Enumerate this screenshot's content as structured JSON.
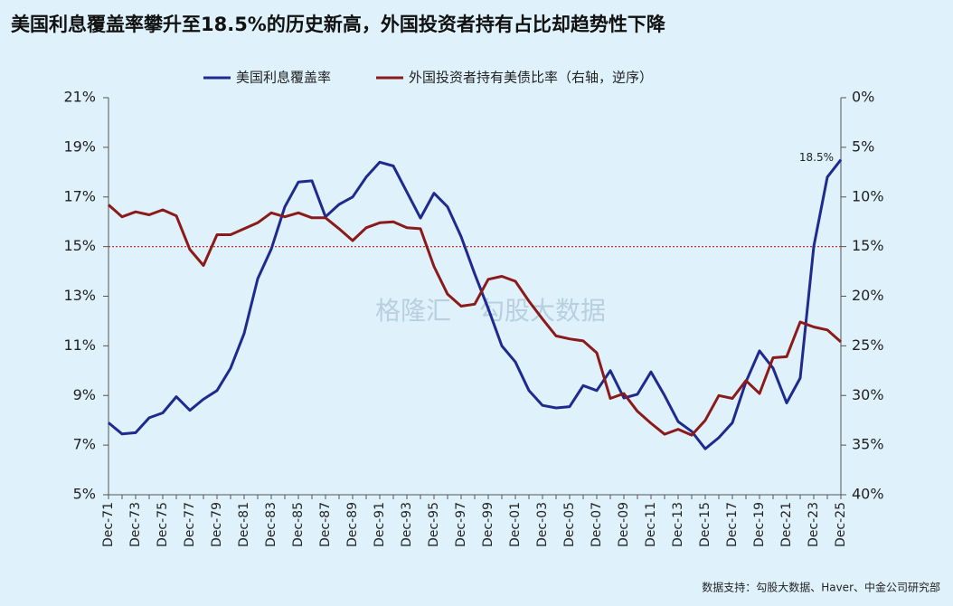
{
  "chart_data": {
    "type": "line",
    "title": "美国利息覆盖率攀升至18.5%的历史新高，外国投资者持有占比却趋势性下降",
    "categories": [
      "Dec-71",
      null,
      "Dec-73",
      null,
      "Dec-75",
      null,
      "Dec-77",
      null,
      "Dec-79",
      null,
      "Dec-81",
      null,
      "Dec-83",
      null,
      "Dec-85",
      null,
      "Dec-87",
      null,
      "Dec-89",
      null,
      "Dec-91",
      null,
      "Dec-93",
      null,
      "Dec-95",
      null,
      "Dec-97",
      null,
      "Dec-99",
      null,
      "Dec-01",
      null,
      "Dec-03",
      null,
      "Dec-05",
      null,
      "Dec-07",
      null,
      "Dec-09",
      null,
      "Dec-11",
      null,
      "Dec-13",
      null,
      "Dec-15",
      null,
      "Dec-17",
      null,
      "Dec-19",
      null,
      "Dec-21",
      null,
      "Dec-23",
      null,
      "Dec-25"
    ],
    "series": [
      {
        "name": "美国利息覆盖率",
        "color": "#1f2a8f",
        "axis": "y",
        "values": [
          7.9,
          7.45,
          7.5,
          8.1,
          8.3,
          8.95,
          8.4,
          8.85,
          9.2,
          10.1,
          11.5,
          13.7,
          14.9,
          16.6,
          17.6,
          17.65,
          16.2,
          16.7,
          17.0,
          17.8,
          18.4,
          18.25,
          17.2,
          16.15,
          17.15,
          16.6,
          15.4,
          13.9,
          12.5,
          11.0,
          10.35,
          9.2,
          8.6,
          8.5,
          8.55,
          9.4,
          9.2,
          10.0,
          8.9,
          9.05,
          9.95,
          9.0,
          7.95,
          7.55,
          6.85,
          7.3,
          7.9,
          9.55,
          10.8,
          10.1,
          8.7,
          9.7,
          15.0,
          17.8,
          18.5
        ]
      },
      {
        "name": "外国投资者持有美债比率（右轴，逆序）",
        "color": "#8b1a1a",
        "axis": "y2",
        "values": [
          10.8,
          12.0,
          11.5,
          11.8,
          11.3,
          11.9,
          15.3,
          16.9,
          13.8,
          13.8,
          13.2,
          12.6,
          11.6,
          12.0,
          11.6,
          12.1,
          12.1,
          13.2,
          14.4,
          13.1,
          12.6,
          12.5,
          13.1,
          13.2,
          17.0,
          19.8,
          21.0,
          20.8,
          18.3,
          18.0,
          18.5,
          20.5,
          22.3,
          24.0,
          24.3,
          24.5,
          25.7,
          30.3,
          29.8,
          31.6,
          32.8,
          33.9,
          33.4,
          34.0,
          32.5,
          30.0,
          30.3,
          28.5,
          29.8,
          26.2,
          26.1,
          22.6,
          23.1,
          23.4,
          24.6
        ]
      }
    ],
    "ylim": [
      5,
      21
    ],
    "yticks": [
      {
        "value": 5,
        "label": "5%"
      },
      {
        "value": 7,
        "label": "7%"
      },
      {
        "value": 9,
        "label": "9%"
      },
      {
        "value": 11,
        "label": "11%"
      },
      {
        "value": 13,
        "label": "13%"
      },
      {
        "value": 15,
        "label": "15%"
      },
      {
        "value": 17,
        "label": "17%"
      },
      {
        "value": 19,
        "label": "19%"
      },
      {
        "value": 21,
        "label": "21%"
      }
    ],
    "y2lim": [
      40,
      0
    ],
    "y2ticks": [
      {
        "value": 0,
        "label": "0%"
      },
      {
        "value": 5,
        "label": "5%"
      },
      {
        "value": 10,
        "label": "10%"
      },
      {
        "value": 15,
        "label": "15%"
      },
      {
        "value": 20,
        "label": "20%"
      },
      {
        "value": 25,
        "label": "25%"
      },
      {
        "value": 30,
        "label": "30%"
      },
      {
        "value": 35,
        "label": "35%"
      },
      {
        "value": 40,
        "label": "40%"
      }
    ],
    "reference_line": {
      "value": 15,
      "color": "#cc3333"
    },
    "annotation": {
      "series": 0,
      "index": 54,
      "label": "18.5%"
    },
    "watermark": [
      "格隆汇",
      "勾股大数据"
    ],
    "source": "数据支持：勾股大数据、Haver、中金公司研究部",
    "legend": "top"
  }
}
